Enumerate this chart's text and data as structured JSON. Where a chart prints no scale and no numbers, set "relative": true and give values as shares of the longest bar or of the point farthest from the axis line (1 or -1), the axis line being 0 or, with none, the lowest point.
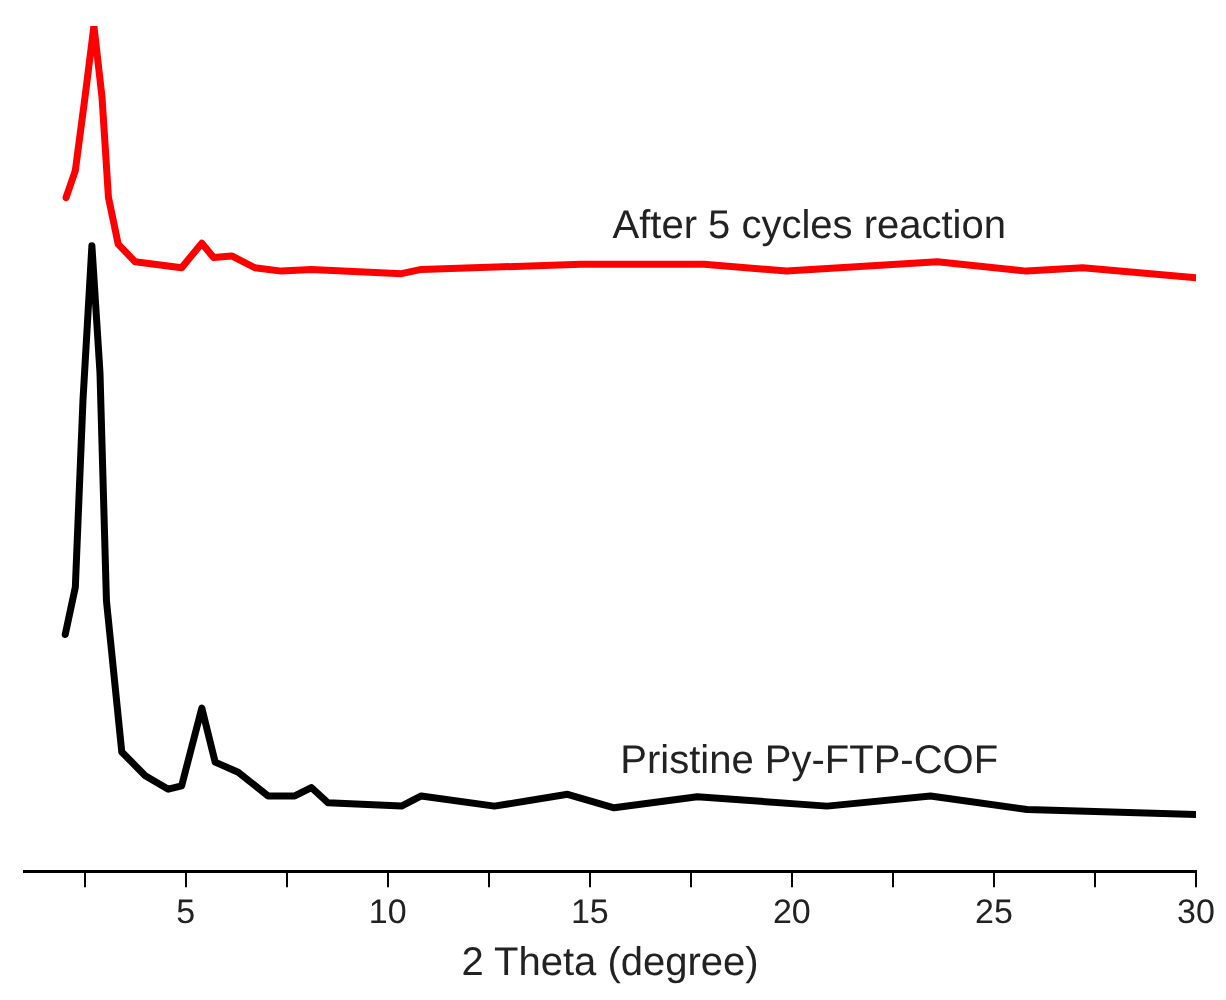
{
  "chart_data": {
    "type": "line",
    "relative": true,
    "xlabel": "2 Theta (degree)",
    "xlim": [
      1,
      30
    ],
    "xticks": [
      {
        "value": 2.5,
        "label": null
      },
      5,
      {
        "value": 7.5,
        "label": null
      },
      10,
      {
        "value": 12.5,
        "label": null
      },
      15,
      {
        "value": 17.5,
        "label": null
      },
      20,
      {
        "value": 22.5,
        "label": null
      },
      25,
      {
        "value": 27.5,
        "label": null
      },
      30
    ],
    "grid": false,
    "legend": false,
    "marker": "none",
    "line_style": "solid",
    "series": [
      {
        "name": "After 5 cycles reaction",
        "color": "#ff0000",
        "x": [
          2.04,
          2.27,
          2.51,
          2.73,
          2.93,
          3.09,
          3.33,
          3.75,
          4.9,
          5.4,
          5.69,
          6.14,
          6.71,
          7.37,
          8.11,
          10.34,
          10.83,
          14.78,
          17.83,
          19.87,
          23.6,
          25.8,
          27.2,
          30
        ],
        "values": [
          0.797,
          0.829,
          0.916,
          1,
          0.916,
          0.797,
          0.742,
          0.721,
          0.714,
          0.743,
          0.726,
          0.728,
          0.714,
          0.71,
          0.712,
          0.707,
          0.712,
          0.718,
          0.718,
          0.71,
          0.721,
          0.71,
          0.714,
          0.702
        ]
      },
      {
        "name": "Pristine Py-FTP-COF",
        "color": "#000000",
        "x": [
          2.02,
          2.27,
          2.46,
          2.68,
          2.88,
          3.04,
          3.42,
          4.0,
          4.57,
          4.9,
          5.4,
          5.73,
          6.3,
          7.04,
          7.7,
          8.11,
          8.52,
          10.34,
          10.83,
          12.64,
          14.45,
          15.6,
          17.66,
          20.87,
          23.43,
          25.82,
          30
        ],
        "values": [
          0.28,
          0.336,
          0.558,
          0.74,
          0.59,
          0.32,
          0.141,
          0.113,
          0.097,
          0.101,
          0.193,
          0.129,
          0.117,
          0.089,
          0.089,
          0.099,
          0.081,
          0.077,
          0.089,
          0.077,
          0.091,
          0.075,
          0.088,
          0.077,
          0.089,
          0.073,
          0.067
        ]
      }
    ]
  }
}
